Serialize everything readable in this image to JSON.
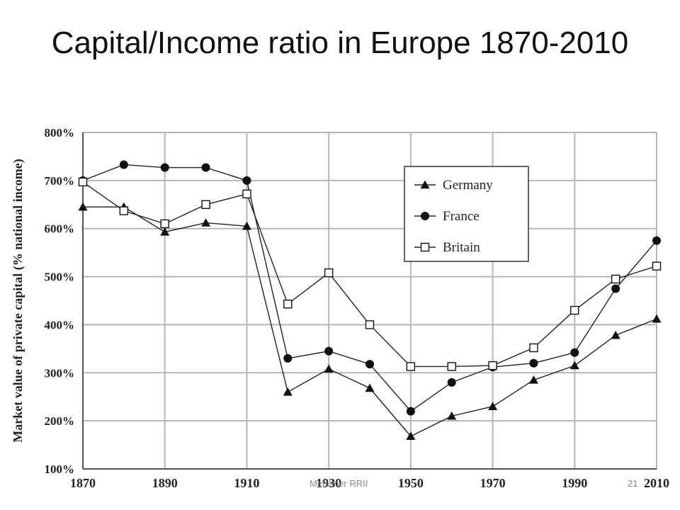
{
  "slide": {
    "title": "Capital/Income ratio in Europe 1870-2010",
    "footer_left": "Meissner RRII",
    "footer_right": "21"
  },
  "chart_data": {
    "type": "line",
    "title": "",
    "ylabel": "Market value of private capital (% national income)",
    "xlabel": "",
    "x": [
      1870,
      1880,
      1890,
      1900,
      1910,
      1920,
      1930,
      1940,
      1950,
      1960,
      1970,
      1980,
      1990,
      2000,
      2010
    ],
    "xticks": [
      1870,
      1890,
      1910,
      1930,
      1950,
      1970,
      1990,
      2010
    ],
    "xtick_labels": [
      "1870",
      "1890",
      "1910",
      "1930",
      "1950",
      "1970",
      "1990",
      "2010"
    ],
    "yticks": [
      100,
      200,
      300,
      400,
      500,
      600,
      700,
      800
    ],
    "ytick_labels": [
      "100%",
      "200%",
      "300%",
      "400%",
      "500%",
      "600%",
      "700%",
      "800%"
    ],
    "xlim": [
      1870,
      2010
    ],
    "ylim": [
      100,
      800
    ],
    "grid": true,
    "legend_position": "upper-right",
    "series": [
      {
        "name": "Germany",
        "marker": "triangle",
        "values": [
          645,
          645,
          593,
          612,
          605,
          260,
          308,
          268,
          168,
          210,
          230,
          285,
          315,
          378,
          412
        ]
      },
      {
        "name": "France",
        "marker": "circle",
        "values": [
          700,
          733,
          727,
          727,
          700,
          330,
          345,
          318,
          220,
          280,
          312,
          320,
          342,
          475,
          575
        ]
      },
      {
        "name": "Britain",
        "marker": "square",
        "values": [
          697,
          637,
          610,
          650,
          672,
          443,
          508,
          400,
          313,
          313,
          315,
          352,
          430,
          495,
          522
        ]
      }
    ]
  }
}
